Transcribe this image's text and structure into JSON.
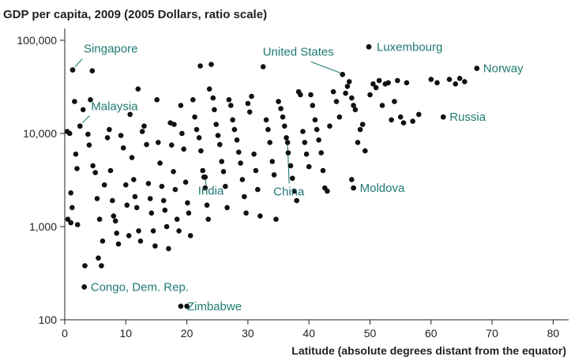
{
  "chart_data": {
    "type": "scatter",
    "title": "GDP per capita, 2009 (2005 Dollars, ratio scale)",
    "xlabel": "Latitude (absolute degrees distant from the equator)",
    "ylabel": "",
    "xlim": [
      0,
      83
    ],
    "ylim": [
      100,
      150000
    ],
    "yscale": "log",
    "grid": false,
    "x_ticks": [
      0,
      10,
      20,
      30,
      40,
      50,
      60,
      70,
      80
    ],
    "x_tick_labels": [
      "0",
      "10",
      "20",
      "30",
      "40",
      "50",
      "60",
      "70",
      "80"
    ],
    "y_ticks": [
      100,
      1000,
      10000,
      100000
    ],
    "y_tick_labels": [
      "100",
      "1,000",
      "10,000",
      "100,000"
    ],
    "annotation_color": "#1f7a73",
    "point_color": "#111111",
    "annotations": [
      {
        "label": "Singapore",
        "x": 1.3,
        "y": 48000
      },
      {
        "label": "Malaysia",
        "x": 2.5,
        "y": 12000
      },
      {
        "label": "Congo, Dem. Rep.",
        "x": 3.2,
        "y": 225
      },
      {
        "label": "Zimbabwe",
        "x": 19.0,
        "y": 140
      },
      {
        "label": "India",
        "x": 23.0,
        "y": 3400
      },
      {
        "label": "China",
        "x": 36.5,
        "y": 8000
      },
      {
        "label": "United States",
        "x": 45.5,
        "y": 43000
      },
      {
        "label": "Luxembourg",
        "x": 49.8,
        "y": 85000
      },
      {
        "label": "Norway",
        "x": 67.5,
        "y": 50000
      },
      {
        "label": "Russia",
        "x": 62.0,
        "y": 15000
      },
      {
        "label": "Moldova",
        "x": 47.3,
        "y": 2600
      }
    ],
    "points": [
      [
        0.8,
        10000
      ],
      [
        1.0,
        2300
      ],
      [
        1.2,
        1600
      ],
      [
        1.3,
        48000
      ],
      [
        1.6,
        22000
      ],
      [
        1.8,
        6000
      ],
      [
        2.0,
        4200
      ],
      [
        0.5,
        1200
      ],
      [
        1.0,
        1100
      ],
      [
        2.1,
        1050
      ],
      [
        0.4,
        10500
      ],
      [
        2.5,
        12000
      ],
      [
        3.0,
        18000
      ],
      [
        3.3,
        380
      ],
      [
        3.2,
        225
      ],
      [
        3.8,
        9800
      ],
      [
        4.2,
        23000
      ],
      [
        4.5,
        47000
      ],
      [
        4.0,
        7500
      ],
      [
        4.6,
        4500
      ],
      [
        5.0,
        3800
      ],
      [
        5.3,
        2000
      ],
      [
        5.7,
        1200
      ],
      [
        5.5,
        460
      ],
      [
        6.0,
        380
      ],
      [
        6.2,
        700
      ],
      [
        6.5,
        2800
      ],
      [
        7.0,
        9000
      ],
      [
        7.3,
        11000
      ],
      [
        7.5,
        4000
      ],
      [
        7.8,
        1900
      ],
      [
        8.0,
        1300
      ],
      [
        8.3,
        1150
      ],
      [
        8.5,
        850
      ],
      [
        8.8,
        650
      ],
      [
        9.2,
        9500
      ],
      [
        9.6,
        7000
      ],
      [
        10.0,
        2800
      ],
      [
        10.2,
        1700
      ],
      [
        10.5,
        800
      ],
      [
        10.7,
        16000
      ],
      [
        11.0,
        5500
      ],
      [
        11.3,
        3200
      ],
      [
        11.5,
        2100
      ],
      [
        11.8,
        1600
      ],
      [
        12.1,
        900
      ],
      [
        12.4,
        700
      ],
      [
        12.0,
        30000
      ],
      [
        12.7,
        10500
      ],
      [
        13.0,
        12000
      ],
      [
        13.4,
        7600
      ],
      [
        13.7,
        2900
      ],
      [
        14.0,
        2000
      ],
      [
        14.2,
        1400
      ],
      [
        14.5,
        900
      ],
      [
        14.8,
        620
      ],
      [
        15.1,
        23000
      ],
      [
        15.3,
        8000
      ],
      [
        15.6,
        4800
      ],
      [
        15.9,
        2700
      ],
      [
        16.2,
        1900
      ],
      [
        16.4,
        1500
      ],
      [
        16.7,
        1000
      ],
      [
        17.0,
        580
      ],
      [
        17.3,
        13000
      ],
      [
        17.5,
        7500
      ],
      [
        17.8,
        3900
      ],
      [
        18.1,
        2500
      ],
      [
        18.4,
        1200
      ],
      [
        18.7,
        900
      ],
      [
        17.9,
        12500
      ],
      [
        19.0,
        20000
      ],
      [
        19.2,
        10000
      ],
      [
        19.5,
        6800
      ],
      [
        19.8,
        3000
      ],
      [
        20.1,
        1800
      ],
      [
        20.3,
        1400
      ],
      [
        20.6,
        800
      ],
      [
        20.0,
        140
      ],
      [
        21.0,
        23000
      ],
      [
        21.3,
        15000
      ],
      [
        21.6,
        11000
      ],
      [
        22.0,
        9000
      ],
      [
        22.3,
        6500
      ],
      [
        22.6,
        4000
      ],
      [
        22.8,
        3400
      ],
      [
        23.0,
        2600
      ],
      [
        23.3,
        1700
      ],
      [
        23.5,
        1200
      ],
      [
        22.2,
        53000
      ],
      [
        23.7,
        30000
      ],
      [
        24.0,
        55000
      ],
      [
        24.3,
        24000
      ],
      [
        24.5,
        18000
      ],
      [
        24.8,
        12500
      ],
      [
        25.1,
        9500
      ],
      [
        25.4,
        7600
      ],
      [
        25.7,
        5000
      ],
      [
        26.0,
        3900
      ],
      [
        26.3,
        2700
      ],
      [
        26.6,
        1600
      ],
      [
        26.9,
        23000
      ],
      [
        27.2,
        20000
      ],
      [
        27.5,
        14000
      ],
      [
        27.8,
        11000
      ],
      [
        28.2,
        8500
      ],
      [
        28.5,
        6300
      ],
      [
        28.8,
        4800
      ],
      [
        29.1,
        3200
      ],
      [
        29.4,
        2100
      ],
      [
        29.7,
        1400
      ],
      [
        30.0,
        21000
      ],
      [
        30.3,
        17000
      ],
      [
        30.6,
        25000
      ],
      [
        31.0,
        6000
      ],
      [
        31.3,
        4000
      ],
      [
        31.6,
        2500
      ],
      [
        32.0,
        1300
      ],
      [
        32.5,
        52000
      ],
      [
        33.0,
        14000
      ],
      [
        33.3,
        11000
      ],
      [
        33.6,
        8000
      ],
      [
        34.0,
        5000
      ],
      [
        34.3,
        3600
      ],
      [
        34.6,
        1200
      ],
      [
        35.0,
        22000
      ],
      [
        35.4,
        18500
      ],
      [
        35.7,
        15000
      ],
      [
        36.0,
        12000
      ],
      [
        36.3,
        9000
      ],
      [
        36.6,
        6200
      ],
      [
        37.0,
        4500
      ],
      [
        37.3,
        3300
      ],
      [
        37.6,
        2400
      ],
      [
        38.0,
        1900
      ],
      [
        38.3,
        28000
      ],
      [
        38.6,
        26000
      ],
      [
        39.0,
        10500
      ],
      [
        39.3,
        8000
      ],
      [
        39.6,
        6000
      ],
      [
        40.0,
        4400
      ],
      [
        40.3,
        26000
      ],
      [
        40.6,
        20000
      ],
      [
        41.0,
        14000
      ],
      [
        41.3,
        11000
      ],
      [
        41.6,
        8500
      ],
      [
        42.0,
        6200
      ],
      [
        42.3,
        4000
      ],
      [
        42.6,
        2600
      ],
      [
        43.0,
        2400
      ],
      [
        43.4,
        12000
      ],
      [
        44.0,
        28000
      ],
      [
        44.5,
        22000
      ],
      [
        45.0,
        15000
      ],
      [
        45.5,
        43000
      ],
      [
        46.0,
        27000
      ],
      [
        46.3,
        32000
      ],
      [
        46.6,
        36000
      ],
      [
        47.0,
        24000
      ],
      [
        47.3,
        20000
      ],
      [
        47.6,
        18000
      ],
      [
        47.0,
        3200
      ],
      [
        47.3,
        2600
      ],
      [
        48.0,
        8000
      ],
      [
        48.4,
        11000
      ],
      [
        48.8,
        12500
      ],
      [
        49.2,
        6500
      ],
      [
        49.8,
        85000
      ],
      [
        50.0,
        26000
      ],
      [
        50.5,
        34000
      ],
      [
        51.0,
        31000
      ],
      [
        51.5,
        37000
      ],
      [
        52.0,
        20000
      ],
      [
        52.5,
        34000
      ],
      [
        53.0,
        35000
      ],
      [
        53.5,
        14000
      ],
      [
        54.0,
        22000
      ],
      [
        54.5,
        37000
      ],
      [
        55.0,
        15000
      ],
      [
        55.5,
        13000
      ],
      [
        56.0,
        35000
      ],
      [
        57.0,
        13500
      ],
      [
        58.0,
        16000
      ],
      [
        60.0,
        38000
      ],
      [
        61.0,
        35000
      ],
      [
        62.0,
        15000
      ],
      [
        63.0,
        38000
      ],
      [
        64.0,
        34000
      ],
      [
        64.7,
        39000
      ],
      [
        65.5,
        36000
      ],
      [
        67.5,
        50000
      ]
    ]
  }
}
